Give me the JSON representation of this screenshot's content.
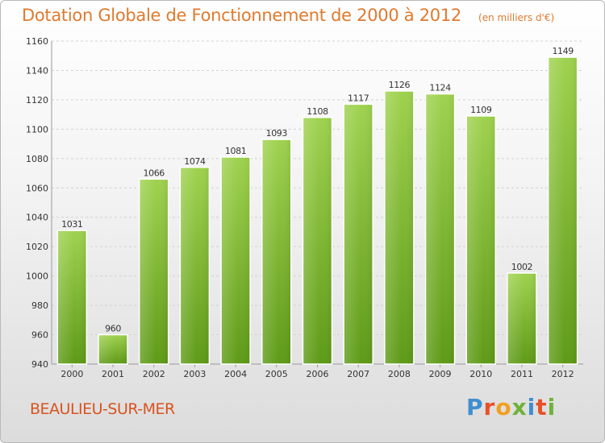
{
  "header": {
    "title": "Dotation Globale de Fonctionnement de 2000 à 2012",
    "subtitle": "(en milliers d'€)"
  },
  "footer": {
    "commune": "BEAULIEU-SUR-MER",
    "brand_letters": [
      "P",
      "r",
      "o",
      "x",
      "i",
      "t",
      "i"
    ],
    "brand_colors": [
      "#3f8fcf",
      "#e8502a",
      "#f0a020",
      "#6fb23a",
      "#3f8fcf",
      "#e8502a",
      "#6fb23a"
    ]
  },
  "colors": {
    "bar_light": "#9fd24f",
    "bar_dark": "#5e9a17",
    "title": "#e07a2e"
  },
  "chart_data": {
    "type": "bar",
    "title": "Dotation Globale de Fonctionnement de 2000 à 2012",
    "subtitle": "(en milliers d'€)",
    "categories": [
      "2000",
      "2001",
      "2002",
      "2003",
      "2004",
      "2005",
      "2006",
      "2007",
      "2008",
      "2009",
      "2010",
      "2011",
      "2012"
    ],
    "values": [
      1031,
      960,
      1066,
      1074,
      1081,
      1093,
      1108,
      1117,
      1126,
      1124,
      1109,
      1002,
      1149
    ],
    "ylim": [
      940,
      1160
    ],
    "yticks": [
      940,
      960,
      980,
      1000,
      1020,
      1040,
      1060,
      1080,
      1100,
      1120,
      1140,
      1160
    ],
    "grid": true,
    "data_labels": true,
    "xlabel": "",
    "ylabel": ""
  }
}
